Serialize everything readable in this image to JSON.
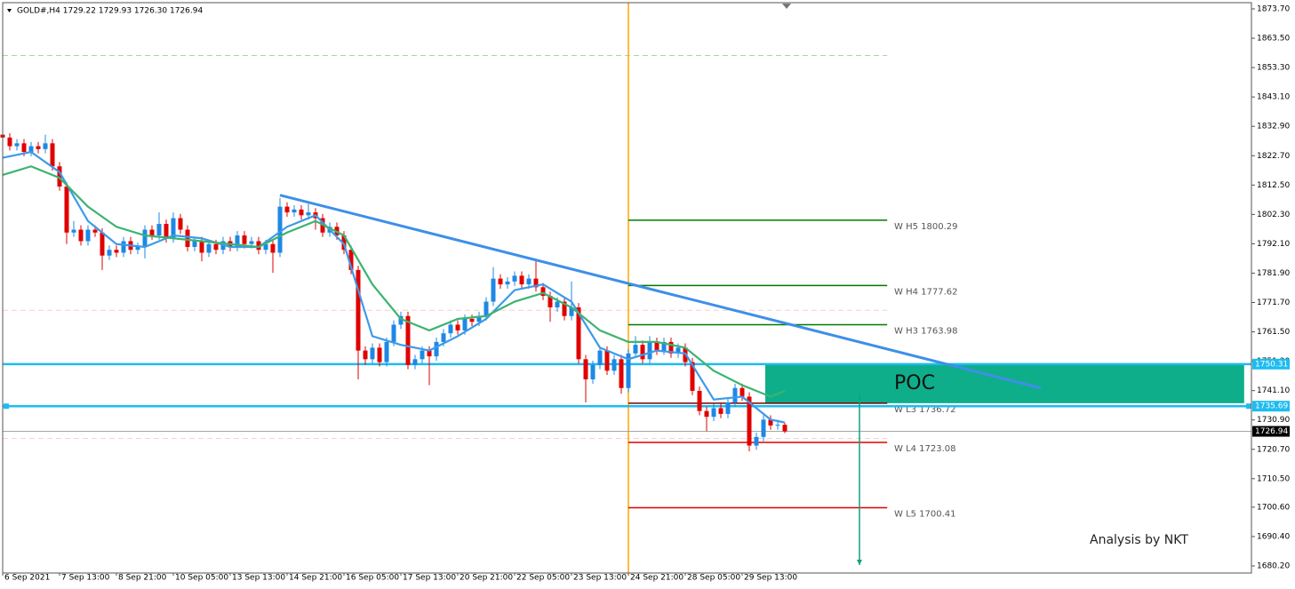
{
  "chart_data": {
    "type": "candlestick",
    "title": "GOLD#,H4  1729.22 1729.93 1726.30 1726.94",
    "annotation": "Analysis by NKT",
    "up_color": "#1e88e5",
    "down_color": "#e00000",
    "categories": [
      "6 Sep 2021",
      null,
      null,
      null,
      null,
      null,
      null,
      null,
      "7 Sep 13:00",
      null,
      null,
      null,
      null,
      null,
      null,
      null,
      "8 Sep 21:00",
      null,
      null,
      null,
      null,
      null,
      null,
      null,
      "10 Sep 05:00",
      null,
      null,
      null,
      null,
      null,
      null,
      null,
      "13 Sep 13:00",
      null,
      null,
      null,
      null,
      null,
      null,
      null,
      "14 Sep 21:00",
      null,
      null,
      null,
      null,
      null,
      null,
      null,
      "16 Sep 05:00",
      null,
      null,
      null,
      null,
      null,
      null,
      null,
      "17 Sep 13:00",
      null,
      null,
      null,
      null,
      null,
      null,
      null,
      "20 Sep 21:00",
      null,
      null,
      null,
      null,
      null,
      null,
      null,
      "22 Sep 05:00",
      null,
      null,
      null,
      null,
      null,
      null,
      null,
      "23 Sep 13:00",
      null,
      null,
      null,
      null,
      null,
      null,
      null,
      "24 Sep 21:00",
      null,
      null,
      null,
      null,
      null,
      null,
      null,
      "28 Sep 05:00",
      null,
      null,
      null,
      null,
      null,
      null,
      null,
      "29 Sep 13:00",
      null,
      null,
      null,
      null,
      null,
      null
    ],
    "open": [
      1830,
      1829,
      1826,
      1827,
      1824,
      1826,
      1825,
      1827,
      1819,
      1812,
      1796,
      1797,
      1793,
      1797,
      1796,
      1788,
      1790,
      1789,
      1793,
      1790,
      1791,
      1797,
      1795,
      1799,
      1794,
      1801,
      1797,
      1791,
      1793,
      1789,
      1792,
      1790,
      1793,
      1791,
      1795,
      1792,
      1793,
      1790,
      1792,
      1789,
      1805,
      1803,
      1804,
      1802,
      1803,
      1801,
      1796,
      1798,
      1795,
      1790,
      1783,
      1755,
      1752,
      1756,
      1751,
      1758,
      1764,
      1767,
      1750,
      1752,
      1755,
      1753,
      1758,
      1761,
      1764,
      1762,
      1766,
      1765,
      1767,
      1772,
      1780,
      1778,
      1779,
      1781,
      1778,
      1780,
      1777,
      1774,
      1770,
      1772,
      1767,
      1770,
      1752,
      1745,
      1750,
      1755,
      1748,
      1752,
      1742,
      1754,
      1757,
      1752,
      1758,
      1755,
      1758,
      1754,
      1756,
      1751,
      1741,
      1734,
      1732,
      1735,
      1733,
      1737,
      1742,
      1739,
      1722,
      1725,
      1731,
      1729,
      1729.22
    ],
    "high": [
      1831.5,
      1830.5,
      1828.5,
      1828.5,
      1827.5,
      1827.5,
      1830,
      1828.5,
      1820.5,
      1813.5,
      1800,
      1798.5,
      1798.5,
      1798.5,
      1797.5,
      1791.5,
      1791.5,
      1794.5,
      1794.5,
      1792.5,
      1798.5,
      1798.5,
      1803,
      1800.5,
      1803,
      1802.5,
      1798.5,
      1794.5,
      1794.5,
      1793.5,
      1793.5,
      1794.5,
      1794.5,
      1796.5,
      1796.5,
      1794.5,
      1794.5,
      1793.5,
      1793.5,
      1808,
      1806.5,
      1805.5,
      1805.5,
      1806,
      1804.5,
      1802.5,
      1799.5,
      1799.5,
      1796.5,
      1791.5,
      1784.5,
      1756.5,
      1757.5,
      1757.5,
      1759.5,
      1765.5,
      1768.5,
      1768.5,
      1753.5,
      1756.5,
      1756.5,
      1759.5,
      1762.5,
      1765.5,
      1765.5,
      1767.5,
      1767.5,
      1768.5,
      1773.5,
      1784,
      1781.5,
      1780.5,
      1782.5,
      1782.5,
      1781.5,
      1786,
      1778.5,
      1775.5,
      1773.5,
      1773.5,
      1779,
      1771.5,
      1753.5,
      1751.5,
      1756.5,
      1756.5,
      1753.5,
      1753.5,
      1755.5,
      1760,
      1758.5,
      1760,
      1759.5,
      1759.5,
      1759.5,
      1757.5,
      1757.5,
      1752.5,
      1742.5,
      1735.5,
      1736.5,
      1736.5,
      1738.5,
      1743.5,
      1743.5,
      1740.5,
      1726.5,
      1732.5,
      1732.5,
      1731,
      1729.93
    ],
    "low": [
      1827.5,
      1824.5,
      1824.5,
      1822.5,
      1822.5,
      1823.5,
      1823.5,
      1817.5,
      1810.5,
      1792,
      1794.5,
      1791.5,
      1791.5,
      1794.5,
      1783,
      1786.5,
      1787.5,
      1787.5,
      1788.5,
      1788.5,
      1787,
      1793.5,
      1793.5,
      1792.5,
      1792.5,
      1795.5,
      1789.5,
      1789.5,
      1786,
      1787.5,
      1788.5,
      1788.5,
      1789.5,
      1789.5,
      1790.5,
      1790.5,
      1788.5,
      1788.5,
      1782,
      1787.5,
      1801.5,
      1801.5,
      1800.5,
      1800.5,
      1797,
      1794.5,
      1794.5,
      1793.5,
      1788.5,
      1781.5,
      1745,
      1750,
      1750.5,
      1749.5,
      1749.5,
      1756.5,
      1762.5,
      1748.5,
      1748.5,
      1750.5,
      1743,
      1751.5,
      1756.5,
      1759.5,
      1760.5,
      1760.5,
      1763.5,
      1763.5,
      1765.5,
      1770.5,
      1776.5,
      1776.5,
      1777.5,
      1776.5,
      1776.5,
      1775.5,
      1772.5,
      1765,
      1768.5,
      1765.5,
      1765.5,
      1750.5,
      1737,
      1743.5,
      1748.5,
      1746.5,
      1746.5,
      1740,
      1740.5,
      1752.5,
      1750.5,
      1750.5,
      1753.5,
      1753.5,
      1752.5,
      1752.5,
      1749.5,
      1739.5,
      1732.5,
      1727,
      1730.5,
      1731.5,
      1731.5,
      1735.5,
      1737.5,
      1720,
      1720.5,
      1723.5,
      1727.5,
      1727.5,
      1726.3
    ],
    "close": [
      1829,
      1826,
      1827,
      1824,
      1826,
      1825,
      1827,
      1819,
      1812,
      1796,
      1797,
      1793,
      1797,
      1796,
      1788,
      1790,
      1789,
      1793,
      1790,
      1791,
      1797,
      1795,
      1799,
      1794,
      1801,
      1797,
      1791,
      1793,
      1789,
      1792,
      1790,
      1793,
      1791,
      1795,
      1792,
      1793,
      1790,
      1792,
      1789,
      1805,
      1803,
      1804,
      1802,
      1803,
      1801,
      1796,
      1798,
      1795,
      1790,
      1783,
      1755,
      1752,
      1756,
      1751,
      1758,
      1764,
      1767,
      1750,
      1752,
      1755,
      1753,
      1758,
      1761,
      1764,
      1762,
      1766,
      1765,
      1767,
      1772,
      1780,
      1778,
      1779,
      1781,
      1778,
      1780,
      1777,
      1774,
      1770,
      1772,
      1767,
      1770,
      1752,
      1745,
      1750,
      1755,
      1748,
      1752,
      1742,
      1754,
      1757,
      1752,
      1758,
      1755,
      1758,
      1754,
      1756,
      1751,
      1741,
      1734,
      1732,
      1735,
      1733,
      1737,
      1742,
      1739,
      1722,
      1725,
      1731,
      1729,
      1729.22,
      1726.94
    ],
    "ylim": [
      1677.73,
      1875.86
    ],
    "yticks": [
      {
        "value": 1873.7,
        "label": "1873.70"
      },
      {
        "value": 1863.5,
        "label": "1863.50"
      },
      {
        "value": 1853.3,
        "label": "1853.30"
      },
      {
        "value": 1843.1,
        "label": "1843.10"
      },
      {
        "value": 1832.9,
        "label": "1832.90"
      },
      {
        "value": 1822.7,
        "label": "1822.70"
      },
      {
        "value": 1812.5,
        "label": "1812.50"
      },
      {
        "value": 1802.3,
        "label": "1802.30"
      },
      {
        "value": 1792.1,
        "label": "1792.10"
      },
      {
        "value": 1781.9,
        "label": "1781.90"
      },
      {
        "value": 1771.7,
        "label": "1771.70"
      },
      {
        "value": 1761.5,
        "label": "1761.50"
      },
      {
        "value": 1751.3,
        "label": "1751.30"
      },
      {
        "value": 1741.1,
        "label": "1741.10"
      },
      {
        "value": 1730.9,
        "label": "1730.90"
      },
      {
        "value": 1720.7,
        "label": "1720.70"
      },
      {
        "value": 1710.5,
        "label": "1710.50"
      },
      {
        "value": 1700.6,
        "label": "1700.60"
      },
      {
        "value": 1690.4,
        "label": "1690.40"
      },
      {
        "value": 1680.2,
        "label": "1680.20"
      }
    ],
    "ma_lines": [
      {
        "color": "#3d9ae8",
        "x": [
          0,
          4,
          8,
          12,
          16,
          20,
          24,
          28,
          32,
          36,
          40,
          44,
          48,
          52,
          56,
          60,
          64,
          68,
          72,
          76,
          80,
          84,
          88,
          92,
          96,
          100,
          104,
          108,
          110
        ],
        "values": [
          1822,
          1824,
          1817,
          1800,
          1792,
          1791,
          1795,
          1794,
          1791,
          1791,
          1798,
          1802,
          1792,
          1760,
          1757,
          1755,
          1760,
          1766,
          1776,
          1778,
          1772,
          1756,
          1752,
          1755,
          1754,
          1738,
          1739,
          1731,
          1730
        ]
      },
      {
        "color": "#3cb371",
        "x": [
          0,
          4,
          8,
          12,
          16,
          20,
          24,
          28,
          32,
          36,
          40,
          44,
          48,
          52,
          56,
          60,
          64,
          68,
          72,
          76,
          80,
          84,
          88,
          92,
          96,
          100,
          104,
          108,
          110
        ],
        "values": [
          1816,
          1819,
          1815,
          1805,
          1798,
          1795,
          1794,
          1793,
          1792,
          1791,
          1796,
          1800,
          1795,
          1778,
          1766,
          1762,
          1766,
          1767,
          1772,
          1775,
          1770,
          1762,
          1758,
          1758,
          1756,
          1748,
          1743,
          1739,
          1741
        ]
      }
    ],
    "trendline": {
      "color": "#3d8fe8",
      "x": [
        39,
        146
      ],
      "values": [
        1809,
        1742
      ]
    },
    "vline": {
      "x": 88,
      "color": "#ffa500"
    },
    "dashed_lines": [
      {
        "value": 1857.5,
        "color": "#9fdc9f",
        "x": [
          0,
          124.4
        ]
      },
      {
        "value": 1769,
        "color": "#f6d0d0",
        "x": [
          0,
          124.4
        ]
      },
      {
        "value": 1724.5,
        "color": "#f6d0d0",
        "x": [
          0,
          124.4
        ]
      }
    ],
    "levels": [
      {
        "label": "W  H5 1800.29",
        "value": 1800.29,
        "color": "#007a00"
      },
      {
        "label": "W  H4 1777.62",
        "value": 1777.62,
        "color": "#007a00"
      },
      {
        "label": "W  H3 1763.98",
        "value": 1763.98,
        "color": "#007a00"
      },
      {
        "label": "W  L3 1736.72",
        "value": 1736.72,
        "color": "#7a0000"
      },
      {
        "label": "W  L4 1723.08",
        "value": 1723.08,
        "color": "#e00000"
      },
      {
        "label": "W  L5 1700.41",
        "value": 1700.41,
        "color": "#e00000"
      }
    ],
    "levels_x": [
      88,
      124.4
    ],
    "hlines": [
      {
        "value": 1750.31,
        "label": "1750.31",
        "color": "#1ebcf0"
      },
      {
        "value": 1735.69,
        "label": "1735.69",
        "color": "#1ebcf0"
      }
    ],
    "price_line": {
      "value": 1726.94,
      "label": "1726.94",
      "color": "#9a9a9a",
      "tag_color": "#000000"
    },
    "poc": {
      "label": "POC",
      "color": "#0fae8a",
      "top": 1750.31,
      "bottom": 1736.72,
      "x": [
        107.25,
        174.6
      ]
    },
    "arrow": {
      "color": "#10a080",
      "x": 120.5,
      "values": [
        1740,
        1680.5
      ]
    }
  }
}
